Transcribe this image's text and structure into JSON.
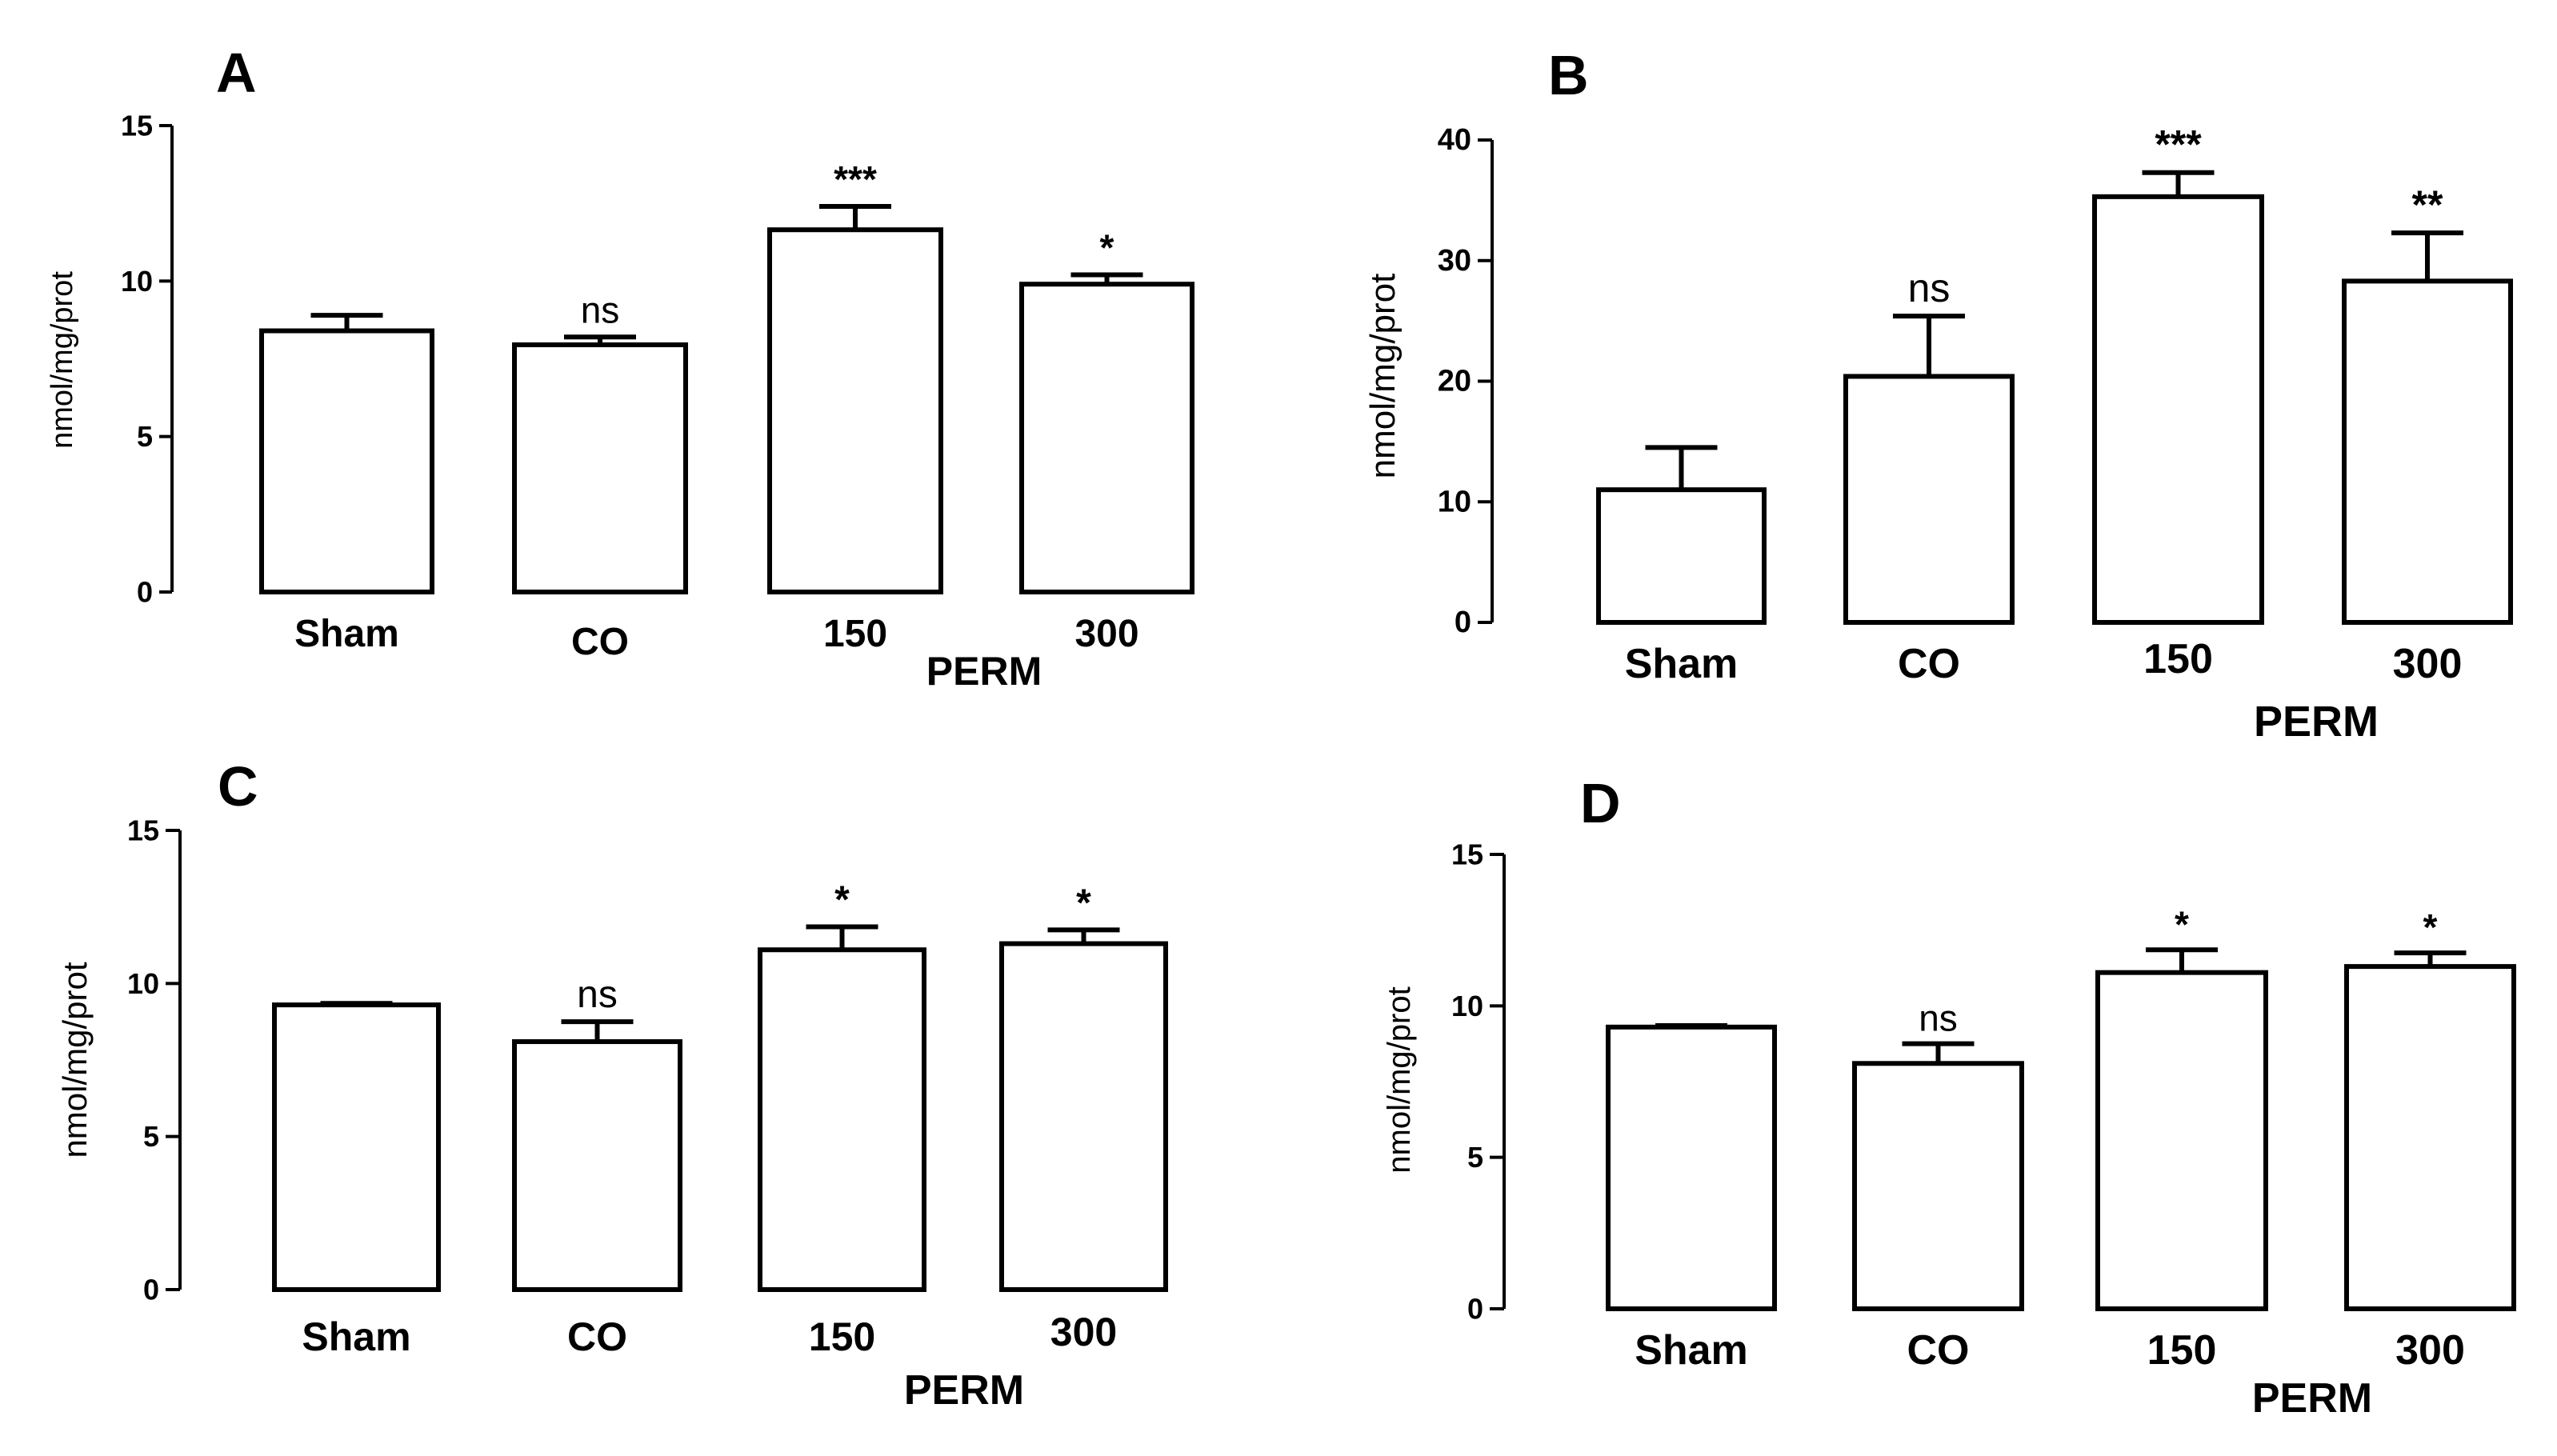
{
  "figure_title": "",
  "chart_data": [
    {
      "panel": "A",
      "type": "bar",
      "categories": [
        "Sham",
        "CO",
        "150",
        "300"
      ],
      "group_label": "PERM",
      "ylabel": "nmol/mg/prot",
      "ylim": [
        0,
        15
      ],
      "yticks": [
        "0",
        "5",
        "10",
        "15"
      ],
      "values": [
        8.4,
        7.95,
        11.65,
        9.9
      ],
      "errors": [
        0.5,
        0.25,
        0.75,
        0.3
      ],
      "significance": [
        "",
        "ns",
        "***",
        "*"
      ]
    },
    {
      "panel": "B",
      "type": "bar",
      "categories": [
        "Sham",
        "CO",
        "150",
        "300"
      ],
      "group_label": "PERM",
      "ylabel": "nmol/mg/prot",
      "ylim": [
        0,
        40
      ],
      "yticks": [
        "0",
        "10",
        "20",
        "30",
        "40"
      ],
      "values": [
        11,
        20.4,
        35.3,
        28.3
      ],
      "errors": [
        3.5,
        5.0,
        2.0,
        4.0
      ],
      "significance": [
        "",
        "ns",
        "***",
        "**"
      ]
    },
    {
      "panel": "C",
      "type": "bar",
      "categories": [
        "Sham",
        "CO",
        "150",
        "300"
      ],
      "group_label": "PERM",
      "ylabel": "nmol/mg/prot",
      "ylim": [
        0,
        15
      ],
      "yticks": [
        "0",
        "5",
        "10",
        "15"
      ],
      "values": [
        9.3,
        8.1,
        11.1,
        11.3
      ],
      "errors": [
        0.05,
        0.65,
        0.75,
        0.45
      ],
      "significance": [
        "",
        "ns",
        "*",
        "*"
      ]
    },
    {
      "panel": "D",
      "type": "bar",
      "categories": [
        "Sham",
        "CO",
        "150",
        "300"
      ],
      "group_label": "PERM",
      "ylabel": "nmol/mg/prot",
      "ylim": [
        0,
        15
      ],
      "yticks": [
        "0",
        "5",
        "10",
        "15"
      ],
      "values": [
        9.3,
        8.1,
        11.1,
        11.3
      ],
      "errors": [
        0.05,
        0.65,
        0.75,
        0.45
      ],
      "significance": [
        "",
        "ns",
        "*",
        "*"
      ]
    }
  ]
}
